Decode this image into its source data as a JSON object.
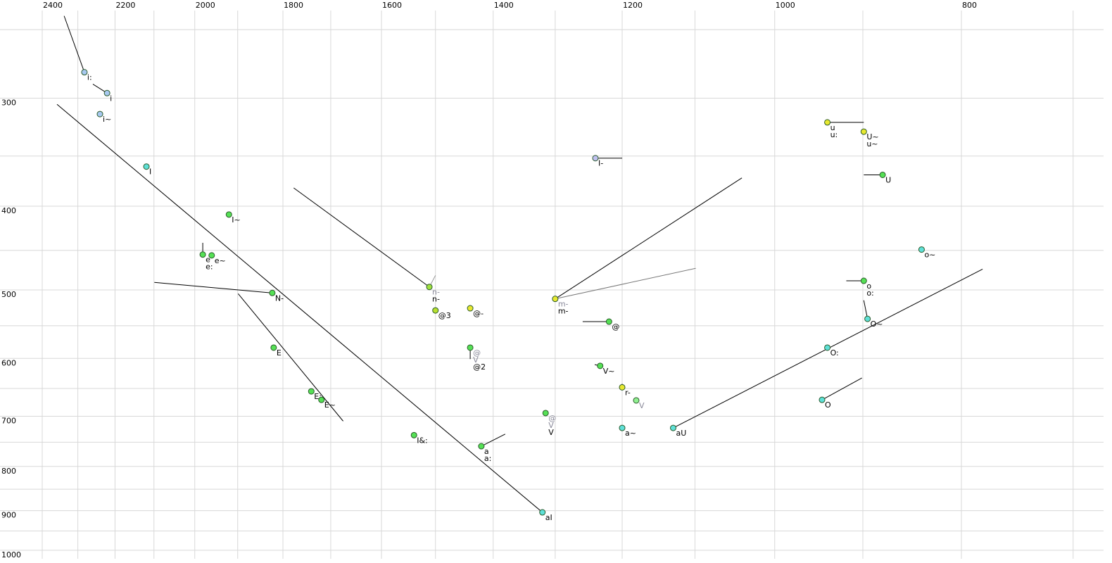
{
  "chart_data": {
    "type": "scatter",
    "xscale": "log",
    "yscale": "log",
    "x_reversed": true,
    "grid": true,
    "xlim": [
      2400,
      675
    ],
    "ylim": [
      231,
      1023
    ],
    "xticks": [
      2400,
      2200,
      2000,
      1800,
      1600,
      1400,
      1200,
      1000,
      800
    ],
    "xminor_ticks": [
      2300,
      2100,
      1900,
      1700,
      1500,
      1300,
      1100,
      900,
      700
    ],
    "yticks": [
      300,
      400,
      500,
      600,
      700,
      800,
      900,
      1000
    ],
    "yminor_ticks": [
      250,
      350,
      450,
      550,
      650,
      750,
      850,
      950
    ],
    "points": [
      {
        "x": 2282,
        "y": 280,
        "color": "#a8c8f0",
        "labels": [
          "i:"
        ],
        "muted": []
      },
      {
        "x": 2221,
        "y": 296,
        "color": "#a8c8f0",
        "labels": [
          "i"
        ],
        "muted": []
      },
      {
        "x": 2240,
        "y": 313,
        "color": "#a8c8f0",
        "labels": [
          "i~"
        ],
        "muted": []
      },
      {
        "x": 2119,
        "y": 360,
        "color": "#5ee0d8",
        "labels": [
          "I"
        ],
        "muted": []
      },
      {
        "x": 1920,
        "y": 409,
        "color": "#55e055",
        "labels": [
          "I~"
        ],
        "muted": []
      },
      {
        "x": 1981,
        "y": 455,
        "color": "#55e055",
        "labels": [
          "e",
          "e:"
        ],
        "muted": []
      },
      {
        "x": 1960,
        "y": 456,
        "color": "#55e055",
        "labels": [
          "e~"
        ],
        "muted": []
      },
      {
        "x": 1823,
        "y": 504,
        "color": "#55e055",
        "labels": [
          "N-"
        ],
        "muted": []
      },
      {
        "x": 1820,
        "y": 583,
        "color": "#55e055",
        "labels": [
          "E"
        ],
        "muted": []
      },
      {
        "x": 1740,
        "y": 655,
        "color": "#55e055",
        "labels": [
          "E:"
        ],
        "muted": []
      },
      {
        "x": 1719,
        "y": 670,
        "color": "#55e055",
        "labels": [
          "E~"
        ],
        "muted": []
      },
      {
        "x": 1539,
        "y": 736,
        "color": "#55e055",
        "labels": [
          "I&:"
        ],
        "muted": []
      },
      {
        "x": 1511,
        "y": 496,
        "color": "#a0e040",
        "labels": [
          "n-"
        ],
        "muted": [
          "n-"
        ]
      },
      {
        "x": 1500,
        "y": 528,
        "color": "#b8e030",
        "labels": [
          "@3"
        ],
        "muted": []
      },
      {
        "x": 1439,
        "y": 525,
        "color": "#e8e830",
        "labels": [
          "@-"
        ],
        "muted": []
      },
      {
        "x": 1439,
        "y": 583,
        "color": "#55e055",
        "labels": [
          "@2"
        ],
        "muted": [
          "@",
          "V"
        ]
      },
      {
        "x": 1420,
        "y": 758,
        "color": "#55e055",
        "labels": [
          "a",
          "a:"
        ],
        "muted": []
      },
      {
        "x": 1320,
        "y": 904,
        "color": "#5ee0d8",
        "labels": [
          "aI"
        ],
        "muted": []
      },
      {
        "x": 1315,
        "y": 694,
        "color": "#55e055",
        "labels": [
          "V"
        ],
        "muted": [
          "@",
          "V"
        ]
      },
      {
        "x": 1300,
        "y": 512,
        "color": "#e8e830",
        "labels": [
          "m-"
        ],
        "muted": [
          "m-"
        ]
      },
      {
        "x": 1239,
        "y": 352,
        "color": "#c0c0f0",
        "labels": [
          "I-"
        ],
        "muted": []
      },
      {
        "x": 1219,
        "y": 544,
        "color": "#55e055",
        "labels": [
          "@"
        ],
        "muted": []
      },
      {
        "x": 1232,
        "y": 612,
        "color": "#55e055",
        "labels": [
          "V~"
        ],
        "muted": []
      },
      {
        "x": 1200,
        "y": 648,
        "color": "#e8e830",
        "labels": [
          "r-"
        ],
        "muted": []
      },
      {
        "x": 1180,
        "y": 671,
        "color": "#90f090",
        "labels": [],
        "muted": [
          "V"
        ]
      },
      {
        "x": 1200,
        "y": 722,
        "color": "#5ee0d8",
        "labels": [
          "a~"
        ],
        "muted": []
      },
      {
        "x": 1129,
        "y": 722,
        "color": "#5ee0d8",
        "labels": [
          "aU"
        ],
        "muted": []
      },
      {
        "x": 939,
        "y": 320,
        "color": "#e8e830",
        "labels": [
          "u",
          "u:"
        ],
        "muted": []
      },
      {
        "x": 899,
        "y": 328,
        "color": "#e8e830",
        "labels": [
          "U~",
          "u~"
        ],
        "muted": []
      },
      {
        "x": 879,
        "y": 368,
        "color": "#55e055",
        "labels": [
          "U"
        ],
        "muted": []
      },
      {
        "x": 839,
        "y": 449,
        "color": "#5ee0d8",
        "labels": [
          "o~"
        ],
        "muted": []
      },
      {
        "x": 899,
        "y": 488,
        "color": "#55e055",
        "labels": [
          "o",
          "o:"
        ],
        "muted": []
      },
      {
        "x": 895,
        "y": 540,
        "color": "#5ee0d8",
        "labels": [
          "O~"
        ],
        "muted": []
      },
      {
        "x": 939,
        "y": 583,
        "color": "#5ee0d8",
        "labels": [
          "O:"
        ],
        "muted": []
      },
      {
        "x": 945,
        "y": 670,
        "color": "#5ee0d8",
        "labels": [
          "O"
        ],
        "muted": []
      }
    ],
    "segments": [
      {
        "x": [
          2338,
          2282
        ],
        "y": [
          241,
          280
        ],
        "color": "#000000"
      },
      {
        "x": [
          2259,
          2221
        ],
        "y": [
          289,
          296
        ],
        "color": "#000000"
      },
      {
        "x": [
          2358,
          1320
        ],
        "y": [
          305,
          904
        ],
        "color": "#000000"
      },
      {
        "x": [
          1777,
          1511
        ],
        "y": [
          381,
          496
        ],
        "color": "#000000"
      },
      {
        "x": [
          1511,
          1500
        ],
        "y": [
          496,
          481
        ],
        "color": "#999999"
      },
      {
        "x": [
          2099,
          1823
        ],
        "y": [
          490,
          504
        ],
        "color": "#000000"
      },
      {
        "x": [
          1899,
          1675
        ],
        "y": [
          505,
          709
        ],
        "color": "#000000"
      },
      {
        "x": [
          1981,
          1981
        ],
        "y": [
          441,
          455
        ],
        "color": "#000000"
      },
      {
        "x": [
          1420,
          1380
        ],
        "y": [
          758,
          734
        ],
        "color": "#000000"
      },
      {
        "x": [
          1300,
          1040
        ],
        "y": [
          512,
          371
        ],
        "color": "#000000"
      },
      {
        "x": [
          1300,
          1099
        ],
        "y": [
          512,
          472
        ],
        "color": "#777777"
      },
      {
        "x": [
          1239,
          1200
        ],
        "y": [
          352,
          352
        ],
        "color": "#000000"
      },
      {
        "x": [
          1258,
          1219
        ],
        "y": [
          544,
          544
        ],
        "color": "#000000"
      },
      {
        "x": [
          1240,
          1232
        ],
        "y": [
          610,
          612
        ],
        "color": "#000000"
      },
      {
        "x": [
          1200,
          1200
        ],
        "y": [
          642,
          648
        ],
        "color": "#000000"
      },
      {
        "x": [
          1439,
          1439
        ],
        "y": [
          583,
          601
        ],
        "color": "#000000"
      },
      {
        "x": [
          939,
          899
        ],
        "y": [
          320,
          320
        ],
        "color": "#000000"
      },
      {
        "x": [
          899,
          879
        ],
        "y": [
          368,
          368
        ],
        "color": "#000000"
      },
      {
        "x": [
          918,
          899
        ],
        "y": [
          488,
          488
        ],
        "color": "#000000"
      },
      {
        "x": [
          899,
          895
        ],
        "y": [
          514,
          540
        ],
        "color": "#000000"
      },
      {
        "x": [
          1129,
          780
        ],
        "y": [
          722,
          473
        ],
        "color": "#000000"
      },
      {
        "x": [
          945,
          901
        ],
        "y": [
          670,
          632
        ],
        "color": "#000000"
      }
    ]
  }
}
